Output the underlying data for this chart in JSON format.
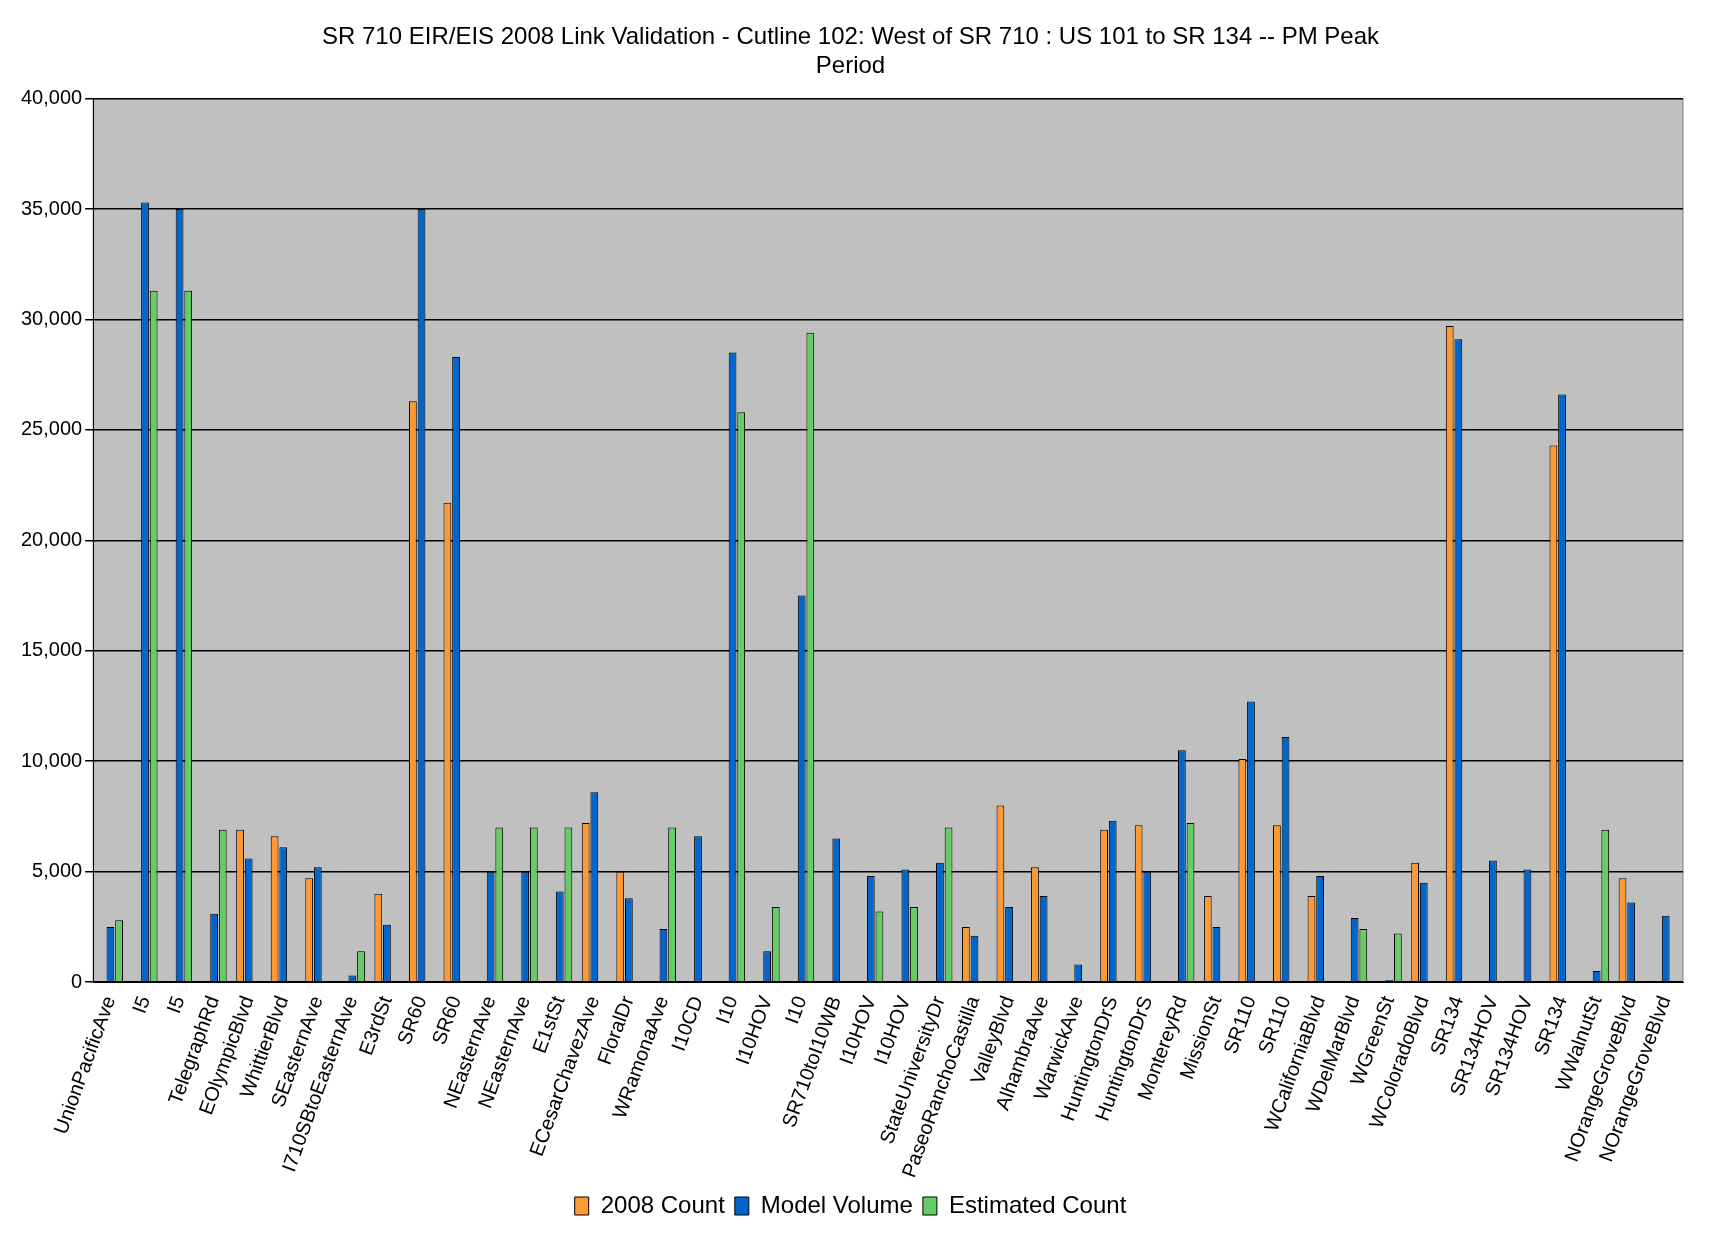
{
  "chart_data": {
    "type": "bar",
    "title": [
      "SR 710 EIR/EIS 2008 Link Validation - Cutline 102: West of SR 710 : US 101 to SR 134 -- PM Peak",
      "Period"
    ],
    "categories": [
      "UnionPacificAve",
      "I5",
      "I5",
      "TelegraphRd",
      "EOlympicBlvd",
      "WhittierBlvd",
      "SEasternAve",
      "I710SBtoEasternAve",
      "E3rdSt",
      "SR60",
      "SR60",
      "NEasternAve",
      "NEasternAve",
      "E1stSt",
      "ECesarChavezAve",
      "FloralDr",
      "WRamonaAve",
      "I10CD",
      "I10",
      "I10HOV",
      "I10",
      "SR710toI10WB",
      "I10HOV",
      "I10HOV",
      "StateUniversityDr",
      "PaseoRanchoCastilla",
      "ValleyBlvd",
      "AlhambraAve",
      "WarwickAve",
      "HuntingtonDrS",
      "HuntingtonDrS",
      "MontereyRd",
      "MissionSt",
      "SR110",
      "SR110",
      "WCaliforniaBlvd",
      "WDelMarBlvd",
      "WGreenSt",
      "WColoradoBlvd",
      "SR134",
      "SR134HOV",
      "SR134HOV",
      "SR134",
      "WWalnutSt",
      "NOrangeGroveBlvd",
      "NOrangeGroveBlvd"
    ],
    "series": [
      {
        "name": "2008 Count",
        "color": "#ff9933",
        "values": [
          null,
          null,
          null,
          null,
          6900,
          6600,
          4700,
          null,
          4000,
          26300,
          21700,
          null,
          null,
          null,
          7200,
          5000,
          null,
          null,
          null,
          null,
          null,
          null,
          null,
          null,
          null,
          2500,
          8000,
          5200,
          null,
          6900,
          7100,
          null,
          3900,
          10100,
          7100,
          3900,
          null,
          null,
          5400,
          29700,
          null,
          null,
          24300,
          null,
          4700,
          null
        ]
      },
      {
        "name": "Model Volume",
        "color": "#0066cc",
        "values": [
          2500,
          35300,
          35000,
          3100,
          5600,
          6100,
          5200,
          300,
          2600,
          35000,
          28300,
          5000,
          5000,
          4100,
          8600,
          3800,
          2400,
          6600,
          28500,
          1400,
          17500,
          6500,
          4800,
          5100,
          5400,
          2100,
          3400,
          3900,
          800,
          7300,
          5000,
          10500,
          2500,
          12700,
          11100,
          4800,
          2900,
          100,
          4500,
          29100,
          5500,
          5100,
          26600,
          500,
          3600,
          3000
        ]
      },
      {
        "name": "Estimated Count",
        "color": "#66cc66",
        "values": [
          2800,
          31300,
          31300,
          6900,
          null,
          null,
          null,
          1400,
          null,
          null,
          null,
          7000,
          7000,
          7000,
          null,
          null,
          7000,
          null,
          25800,
          3400,
          29400,
          null,
          3200,
          3400,
          7000,
          null,
          null,
          null,
          null,
          null,
          null,
          7200,
          null,
          null,
          null,
          null,
          2400,
          2200,
          null,
          null,
          null,
          null,
          null,
          6900,
          null,
          null
        ]
      }
    ],
    "ylim": [
      0,
      40000
    ],
    "yticks": [
      {
        "value": 0,
        "label": "0"
      },
      {
        "value": 5000,
        "label": "5,000"
      },
      {
        "value": 10000,
        "label": "10,000"
      },
      {
        "value": 15000,
        "label": "15,000"
      },
      {
        "value": 20000,
        "label": "20,000"
      },
      {
        "value": 25000,
        "label": "25,000"
      },
      {
        "value": 30000,
        "label": "30,000"
      },
      {
        "value": 35000,
        "label": "35,000"
      },
      {
        "value": 40000,
        "label": "40,000"
      }
    ],
    "grid": "y",
    "legend": "bottom"
  }
}
